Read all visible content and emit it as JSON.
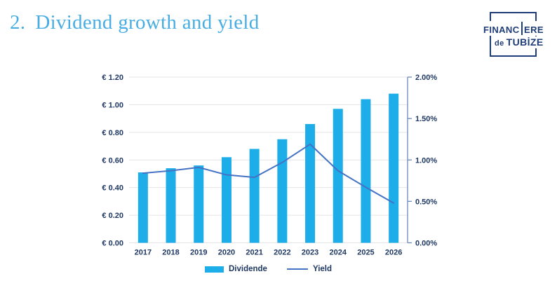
{
  "slide": {
    "title_number": "2.",
    "title_text": "Dividend growth and yield",
    "title_color": "#47ade3"
  },
  "logo": {
    "line1_pre": "FINANC",
    "line1_post": "ERE",
    "line2_small": "de",
    "line2_main": "TUBİZE",
    "color": "#1e3c78"
  },
  "colors": {
    "axis_text": "#1f3864",
    "gridline": "#e4e4e4",
    "right_axis_line": "#6a89bd",
    "background": "#ffffff"
  },
  "chart_data": {
    "type": "combo-bar-line",
    "title": "",
    "categories": [
      "2017",
      "2018",
      "2019",
      "2020",
      "2021",
      "2022",
      "2023",
      "2024",
      "2025",
      "2026"
    ],
    "series": [
      {
        "name": "Dividende",
        "type": "bar",
        "axis": "left",
        "color": "#1daee9",
        "values": [
          0.51,
          0.54,
          0.56,
          0.62,
          0.68,
          0.75,
          0.86,
          0.97,
          1.04,
          1.08
        ]
      },
      {
        "name": "Yield",
        "type": "line",
        "axis": "right",
        "color": "#4472c4",
        "values": [
          0.84,
          0.87,
          0.91,
          0.82,
          0.79,
          0.97,
          1.19,
          0.87,
          0.67,
          0.48
        ]
      }
    ],
    "left_axis": {
      "min": 0,
      "max": 1.2,
      "step": 0.2,
      "tick_labels": [
        "€ 0.00",
        "€ 0.20",
        "€ 0.40",
        "€ 0.60",
        "€ 0.80",
        "€ 1.00",
        "€ 1.20"
      ]
    },
    "right_axis": {
      "min": 0,
      "max": 2,
      "step": 0.5,
      "tick_labels": [
        "0.00%",
        "0.50%",
        "1.00%",
        "1.50%",
        "2.00%"
      ]
    },
    "grid": true,
    "legend_position": "bottom"
  }
}
